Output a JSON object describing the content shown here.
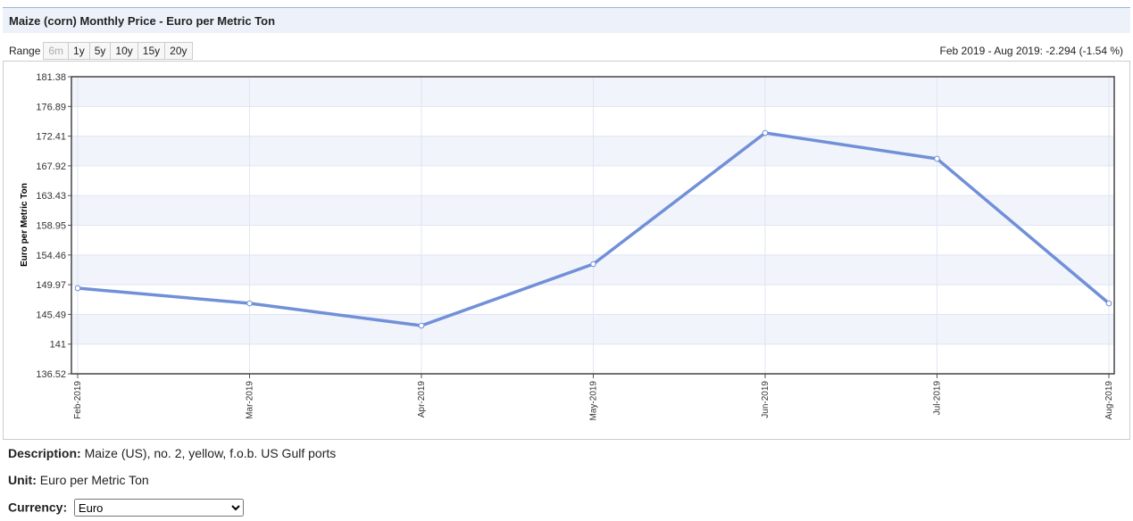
{
  "header": {
    "title": "Maize (corn) Monthly Price - Euro per Metric Ton"
  },
  "range": {
    "label": "Range",
    "buttons": [
      "6m",
      "1y",
      "5y",
      "10y",
      "15y",
      "20y"
    ],
    "summary": "Feb 2019 - Aug 2019: -2.294 (-1.54 %)"
  },
  "chart_data": {
    "type": "line",
    "y_label": "Euro per Metric Ton",
    "categories": [
      "Feb-2019",
      "Mar-2019",
      "Apr-2019",
      "May-2019",
      "Jun-2019",
      "Jul-2019",
      "Aug-2019"
    ],
    "values": [
      149.45,
      147.16,
      143.79,
      153.09,
      172.89,
      168.99,
      147.16
    ],
    "color": "#7190d8",
    "ylim": [
      136.52,
      181.38
    ],
    "yticks": [
      136.52,
      141,
      145.49,
      149.97,
      154.46,
      158.95,
      163.43,
      167.92,
      172.41,
      176.89,
      181.38
    ],
    "grid": true
  },
  "details": {
    "description_label": "Description:",
    "description": "Maize (US), no. 2, yellow, f.o.b. US Gulf ports",
    "unit_label": "Unit:",
    "unit": "Euro per Metric Ton",
    "currency_label": "Currency:",
    "currency": "Euro"
  }
}
